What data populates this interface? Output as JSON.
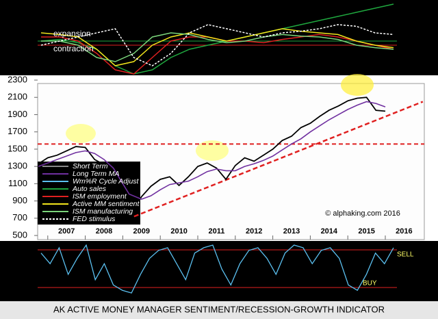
{
  "chart_data": [
    {
      "type": "line",
      "annotations": [
        "expansion",
        "contraction"
      ],
      "x": [
        2006.5,
        2007,
        2007.5,
        2008,
        2008.5,
        2009,
        2009.5,
        2010,
        2010.5,
        2011,
        2011.5,
        2012,
        2012.5,
        2013,
        2013.5,
        2014,
        2014.5,
        2015,
        2015.5,
        2016
      ],
      "series": [
        {
          "name": "Auto sales",
          "color": "#1fa83f",
          "values": [
            50,
            52,
            48,
            40,
            20,
            10,
            15,
            30,
            40,
            45,
            50,
            55,
            60,
            65,
            70,
            75,
            80,
            85,
            90,
            95
          ]
        },
        {
          "name": "ISM employment",
          "color": "#e02020",
          "values": [
            55,
            55,
            50,
            35,
            15,
            10,
            30,
            50,
            55,
            55,
            50,
            50,
            48,
            52,
            55,
            58,
            55,
            50,
            45,
            40
          ]
        },
        {
          "name": "Active MM sentiment",
          "color": "#f2e51c",
          "values": [
            60,
            58,
            55,
            40,
            20,
            25,
            45,
            55,
            60,
            55,
            50,
            55,
            60,
            65,
            62,
            60,
            58,
            50,
            45,
            42
          ]
        },
        {
          "name": "ISM manufacturing",
          "color": "#7bd67b",
          "values": [
            50,
            50,
            45,
            30,
            25,
            35,
            55,
            60,
            58,
            52,
            48,
            50,
            55,
            58,
            56,
            55,
            52,
            45,
            42,
            40
          ]
        },
        {
          "name": "FED stimulus",
          "color": "#ffffff",
          "style": "dashed",
          "values": [
            45,
            50,
            55,
            60,
            65,
            30,
            20,
            35,
            60,
            70,
            65,
            60,
            55,
            60,
            62,
            65,
            70,
            68,
            60,
            58
          ]
        }
      ]
    },
    {
      "type": "line",
      "source": "© alphaking.com 2016",
      "xlim": [
        2006.73,
        2017.04
      ],
      "xticks": [
        2007,
        2008,
        2009,
        2010,
        2011,
        2012,
        2013,
        2014,
        2015,
        2016
      ],
      "ylim": [
        500,
        2300
      ],
      "yticks": [
        500,
        700,
        900,
        1100,
        1300,
        1500,
        1700,
        1900,
        2100,
        2300
      ],
      "grid": false,
      "hlines": [
        1560
      ],
      "trendline": {
        "x": [
          2009.3,
          2017.0
        ],
        "y": [
          720,
          2050
        ]
      },
      "x": [
        2006.75,
        2007,
        2007.25,
        2007.5,
        2007.75,
        2008,
        2008.25,
        2008.5,
        2008.75,
        2009,
        2009.17,
        2009.5,
        2009.75,
        2010,
        2010.25,
        2010.5,
        2010.75,
        2011,
        2011.25,
        2011.5,
        2011.75,
        2012,
        2012.25,
        2012.5,
        2012.75,
        2013,
        2013.25,
        2013.5,
        2013.75,
        2014,
        2014.25,
        2014.5,
        2014.75,
        2015,
        2015.25,
        2015.5,
        2015.75,
        2016
      ],
      "series": [
        {
          "name": "Short Term",
          "color": "#000000",
          "values": [
            1330,
            1400,
            1430,
            1480,
            1530,
            1520,
            1380,
            1320,
            1270,
            900,
            700,
            950,
            1070,
            1150,
            1180,
            1080,
            1180,
            1300,
            1340,
            1280,
            1150,
            1310,
            1400,
            1360,
            1430,
            1500,
            1600,
            1650,
            1750,
            1800,
            1880,
            1950,
            2000,
            2060,
            2090,
            2100,
            1950,
            1940
          ]
        },
        {
          "name": "Long Term MA",
          "color": "#7030a0",
          "values": [
            1300,
            1340,
            1380,
            1420,
            1460,
            1480,
            1450,
            1380,
            1280,
            1100,
            980,
            920,
            960,
            1030,
            1090,
            1110,
            1130,
            1180,
            1240,
            1270,
            1250,
            1250,
            1300,
            1330,
            1370,
            1420,
            1490,
            1560,
            1620,
            1700,
            1770,
            1840,
            1900,
            1960,
            2010,
            2050,
            2030,
            1990
          ]
        }
      ]
    },
    {
      "type": "line",
      "annotations": [
        "SELL",
        "BUY"
      ],
      "x": [
        2006.75,
        2007,
        2007.25,
        2007.5,
        2007.75,
        2008,
        2008.25,
        2008.5,
        2008.75,
        2009,
        2009.25,
        2009.5,
        2009.75,
        2010,
        2010.25,
        2010.5,
        2010.75,
        2011,
        2011.25,
        2011.5,
        2011.75,
        2012,
        2012.25,
        2012.5,
        2012.75,
        2013,
        2013.25,
        2013.5,
        2013.75,
        2014,
        2014.25,
        2014.5,
        2014.75,
        2015,
        2015.25,
        2015.5,
        2015.75,
        2016,
        2016.25,
        2016.5
      ],
      "series": [
        {
          "name": "Wm%R Cycle Adjust",
          "color": "#5bc0f0",
          "values": [
            80,
            60,
            90,
            40,
            70,
            95,
            30,
            60,
            20,
            10,
            5,
            40,
            70,
            85,
            90,
            60,
            30,
            80,
            90,
            95,
            50,
            20,
            60,
            85,
            90,
            70,
            40,
            80,
            95,
            90,
            60,
            85,
            90,
            70,
            20,
            10,
            40,
            80,
            60,
            90
          ]
        }
      ]
    }
  ],
  "footer_title": "AK ACTIVE MONEY MANAGER SENTIMENT/RECESSION-GROWTH INDICATOR"
}
